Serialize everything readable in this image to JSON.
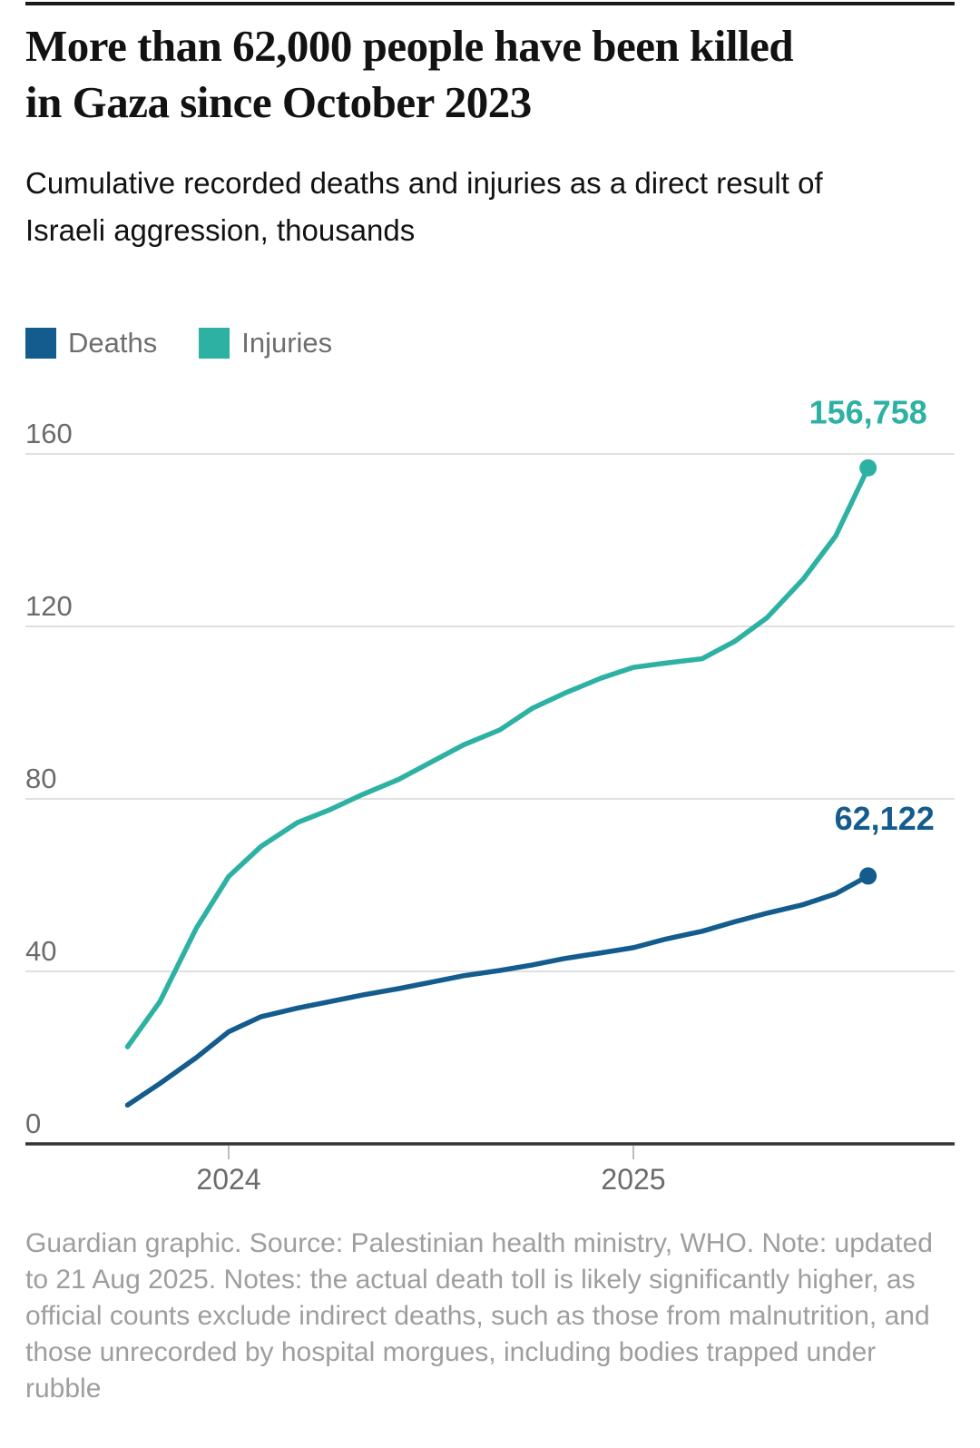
{
  "header": {
    "title": "More than 62,000 people have been killed in Gaza since October 2023",
    "subtitle": "Cumulative recorded deaths and injuries as a direct result of Israeli aggression, thousands"
  },
  "legend": [
    {
      "label": "Deaths",
      "color": "#135C8D"
    },
    {
      "label": "Injuries",
      "color": "#2DB1A3"
    }
  ],
  "chart_data": {
    "type": "line",
    "title": "More than 62,000 people have been killed in Gaza since October 2023",
    "units": "thousands",
    "grid": "horizontal",
    "legend_position": "top-left",
    "x_unit": "decimal-year",
    "xlim": [
      2023.7,
      2025.72
    ],
    "ylim": [
      0,
      160
    ],
    "yticks": [
      160,
      120,
      80,
      40,
      0
    ],
    "ytick_labels": [
      "160",
      "120",
      "80",
      "40",
      "0"
    ],
    "xticks": [
      {
        "label": "2024",
        "x": 2024.0
      },
      {
        "label": "2025",
        "x": 2025.0
      }
    ],
    "series": [
      {
        "name": "Deaths",
        "color": "#135C8D",
        "end_label": "62,122",
        "end_value": 62.122,
        "points": [
          [
            2023.75,
            9
          ],
          [
            2023.83,
            14
          ],
          [
            2023.92,
            20
          ],
          [
            2024.0,
            26
          ],
          [
            2024.08,
            29.5
          ],
          [
            2024.17,
            31.5
          ],
          [
            2024.25,
            33
          ],
          [
            2024.33,
            34.5
          ],
          [
            2024.42,
            36
          ],
          [
            2024.5,
            37.5
          ],
          [
            2024.58,
            39
          ],
          [
            2024.67,
            40.2
          ],
          [
            2024.75,
            41.5
          ],
          [
            2024.83,
            43
          ],
          [
            2024.92,
            44.3
          ],
          [
            2025.0,
            45.5
          ],
          [
            2025.08,
            47.5
          ],
          [
            2025.17,
            49.3
          ],
          [
            2025.25,
            51.5
          ],
          [
            2025.33,
            53.5
          ],
          [
            2025.42,
            55.5
          ],
          [
            2025.5,
            58
          ],
          [
            2025.58,
            62.122
          ]
        ]
      },
      {
        "name": "Injuries",
        "color": "#2DB1A3",
        "end_label": "156,758",
        "end_value": 156.758,
        "points": [
          [
            2023.75,
            22.5
          ],
          [
            2023.83,
            33
          ],
          [
            2023.92,
            50
          ],
          [
            2024.0,
            62
          ],
          [
            2024.08,
            69
          ],
          [
            2024.17,
            74.5
          ],
          [
            2024.25,
            77.5
          ],
          [
            2024.33,
            81
          ],
          [
            2024.42,
            84.5
          ],
          [
            2024.5,
            88.5
          ],
          [
            2024.58,
            92.5
          ],
          [
            2024.67,
            96
          ],
          [
            2024.75,
            101
          ],
          [
            2024.83,
            104.5
          ],
          [
            2024.92,
            108
          ],
          [
            2025.0,
            110.5
          ],
          [
            2025.08,
            111.5
          ],
          [
            2025.17,
            112.5
          ],
          [
            2025.25,
            116.5
          ],
          [
            2025.33,
            122
          ],
          [
            2025.42,
            131
          ],
          [
            2025.5,
            141
          ],
          [
            2025.58,
            156.758
          ]
        ]
      }
    ]
  },
  "footer": {
    "note": "Guardian graphic. Source: Palestinian health ministry, WHO. Note: updated to 21 Aug 2025. Notes: the actual death toll is likely significantly higher, as official counts exclude indirect deaths, such as those from malnutrition, and those unrecorded by hospital morgues, including bodies trapped under rubble"
  }
}
